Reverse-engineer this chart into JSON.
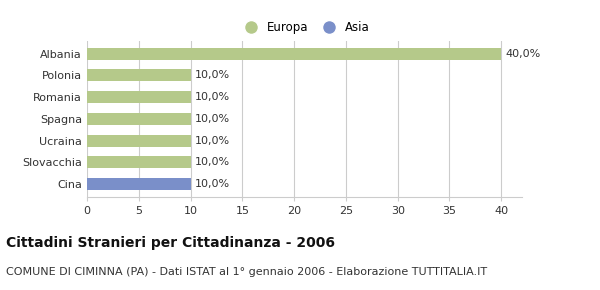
{
  "categories": [
    "Albania",
    "Polonia",
    "Romania",
    "Spagna",
    "Ucraina",
    "Slovacchia",
    "Cina"
  ],
  "values": [
    40.0,
    10.0,
    10.0,
    10.0,
    10.0,
    10.0,
    10.0
  ],
  "colors": [
    "#b5c98a",
    "#b5c98a",
    "#b5c98a",
    "#b5c98a",
    "#b5c98a",
    "#b5c98a",
    "#7a8fc9"
  ],
  "bar_labels": [
    "40,0%",
    "10,0%",
    "10,0%",
    "10,0%",
    "10,0%",
    "10,0%",
    "10,0%"
  ],
  "legend_labels": [
    "Europa",
    "Asia"
  ],
  "legend_colors": [
    "#b5c98a",
    "#7a8fc9"
  ],
  "xlim": [
    0,
    42
  ],
  "xticks": [
    0,
    5,
    10,
    15,
    20,
    25,
    30,
    35,
    40
  ],
  "title": "Cittadini Stranieri per Cittadinanza - 2006",
  "subtitle": "COMUNE DI CIMINNA (PA) - Dati ISTAT al 1° gennaio 2006 - Elaborazione TUTTITALIA.IT",
  "title_fontsize": 10,
  "subtitle_fontsize": 8,
  "label_fontsize": 8,
  "tick_fontsize": 8,
  "legend_fontsize": 8.5,
  "background_color": "#ffffff",
  "grid_color": "#cccccc",
  "bar_height": 0.55
}
